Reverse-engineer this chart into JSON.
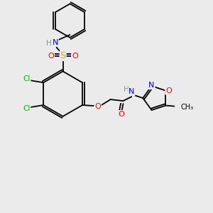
{
  "background_color": "#ebebeb",
  "atom_colors": {
    "C": "#000000",
    "H": "#7a9a9a",
    "N": "#0000ff",
    "O": "#ff0000",
    "S": "#ccaa00",
    "Cl": "#00bb00"
  },
  "bond_color": "#000000",
  "figsize": [
    3.0,
    3.0
  ],
  "dpi": 100
}
